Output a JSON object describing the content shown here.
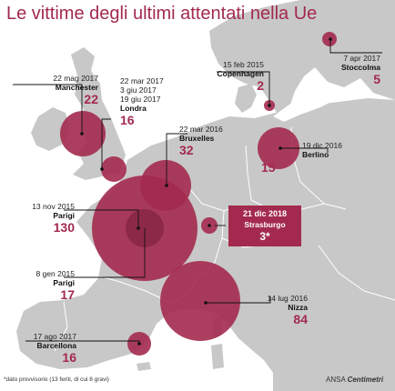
{
  "title": "Le vittime degli ultimi attentati nella Ue",
  "attacks": [
    {
      "id": "stoccolma",
      "date": "7 apr 2017",
      "city": "Stoccolma",
      "victims": 5
    },
    {
      "id": "copenhagen",
      "date": "15 feb 2015",
      "city": "Copenhagen",
      "victims": 2
    },
    {
      "id": "manchester",
      "date": "22 mag 2017",
      "city": "Manchester",
      "victims": 22
    },
    {
      "id": "londra",
      "dates": [
        "22 mar 2017",
        "3 giu 2017",
        "19 giu 2017"
      ],
      "city": "Londra",
      "victims": 16
    },
    {
      "id": "bruxelles",
      "date": "22 mar 2016",
      "city": "Bruxelles",
      "victims": 32
    },
    {
      "id": "berlino",
      "date": "19 dic 2016",
      "city": "Berlino",
      "victims": 15
    },
    {
      "id": "parigi-2015",
      "date": "13 nov 2015",
      "city": "Parigi",
      "victims": 130
    },
    {
      "id": "strasburgo",
      "date": "21 dic 2018",
      "city": "Strasburgo",
      "victims": 3,
      "victims_label": "3*",
      "highlight": true
    },
    {
      "id": "parigi-charlie",
      "date": "8 gen 2015",
      "city": "Parigi",
      "victims": 17
    },
    {
      "id": "nizza",
      "date": "14 lug 2016",
      "city": "Nizza",
      "victims": 84
    },
    {
      "id": "barcellona",
      "date": "17 ago 2017",
      "city": "Barcellona",
      "victims": 16
    }
  ],
  "footnote": "*dato provvisorio (13 feriti, di cui 8 gravi)",
  "credit": {
    "agency": "ANSA",
    "partner": "Centimetri"
  },
  "colors": {
    "accent": "#a32a4e",
    "land": "#c8c8c8",
    "sea": "#ffffff",
    "borders": "#ffffff"
  }
}
